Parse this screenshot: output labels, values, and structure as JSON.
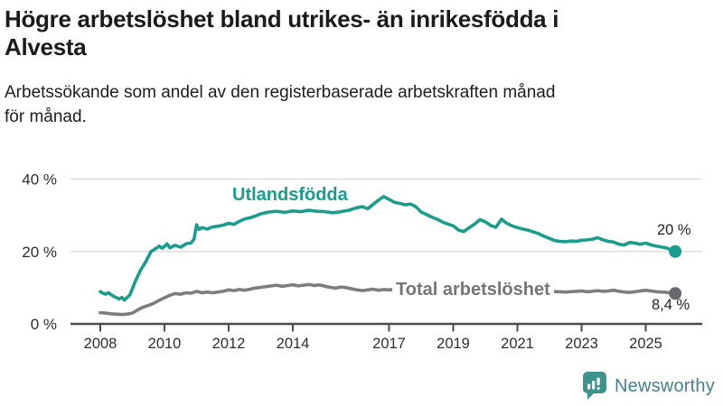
{
  "title_lines": [
    "Högre arbetslöshet bland utrikes- än inrikesfödda i",
    "Alvesta"
  ],
  "subtitle_lines": [
    "Arbetssökande som andel av den registerbaserade arbetskraften månad",
    "för månad."
  ],
  "logo": {
    "text": "Newsworthy",
    "icon": "bar-chart-speech-bubble",
    "icon_color": "#3e948b",
    "text_color": "#45808f"
  },
  "colors": {
    "grid": "#d8d8d8",
    "axis": "#4a4a4a",
    "tick_label": "#2e2e2e"
  },
  "chart_data": {
    "type": "line",
    "title": "Högre arbetslöshet bland utrikes- än inrikesfödda i Alvesta",
    "subtitle": "Arbetssökande som andel av den registerbaserade arbetskraften månad för månad.",
    "xlabel": "",
    "ylabel": "",
    "x_axis": {
      "ticks": [
        2008,
        2010,
        2012,
        2014,
        2017,
        2019,
        2021,
        2023,
        2025
      ],
      "range_years": [
        2008,
        2025.92
      ]
    },
    "y_axis": {
      "ticks": [
        {
          "value": 0,
          "label": "0 %"
        },
        {
          "value": 20,
          "label": "20 %"
        },
        {
          "value": 40,
          "label": "40 %"
        }
      ],
      "range": [
        0,
        44
      ],
      "grid": true
    },
    "legend_position": "inline-labels",
    "series": [
      {
        "name": "Utlandsfödda",
        "color": "#1a9c8e",
        "dot_color": "#1a9c8e",
        "end_label": "20 %",
        "end_value": 20.0,
        "points": [
          [
            2008.0,
            8.9
          ],
          [
            2008.08,
            8.5
          ],
          [
            2008.17,
            8.2
          ],
          [
            2008.25,
            8.6
          ],
          [
            2008.42,
            7.6
          ],
          [
            2008.58,
            6.9
          ],
          [
            2008.67,
            7.3
          ],
          [
            2008.75,
            6.6
          ],
          [
            2008.92,
            8.0
          ],
          [
            2009.08,
            11.5
          ],
          [
            2009.25,
            14.8
          ],
          [
            2009.42,
            17.2
          ],
          [
            2009.58,
            20.0
          ],
          [
            2009.75,
            20.9
          ],
          [
            2009.83,
            21.5
          ],
          [
            2009.92,
            20.9
          ],
          [
            2010.0,
            21.4
          ],
          [
            2010.08,
            22.1
          ],
          [
            2010.17,
            21.0
          ],
          [
            2010.33,
            21.7
          ],
          [
            2010.5,
            21.2
          ],
          [
            2010.67,
            22.1
          ],
          [
            2010.83,
            22.4
          ],
          [
            2010.92,
            23.4
          ],
          [
            2011.0,
            27.4
          ],
          [
            2011.08,
            26.1
          ],
          [
            2011.17,
            26.6
          ],
          [
            2011.33,
            26.2
          ],
          [
            2011.5,
            26.8
          ],
          [
            2011.67,
            27.0
          ],
          [
            2011.83,
            27.3
          ],
          [
            2012.0,
            27.8
          ],
          [
            2012.17,
            27.5
          ],
          [
            2012.33,
            28.3
          ],
          [
            2012.5,
            29.0
          ],
          [
            2012.67,
            29.3
          ],
          [
            2012.83,
            29.8
          ],
          [
            2013.0,
            30.4
          ],
          [
            2013.25,
            30.9
          ],
          [
            2013.5,
            31.1
          ],
          [
            2013.75,
            30.8
          ],
          [
            2014.0,
            31.2
          ],
          [
            2014.25,
            31.0
          ],
          [
            2014.5,
            31.4
          ],
          [
            2014.75,
            31.1
          ],
          [
            2015.0,
            31.0
          ],
          [
            2015.25,
            30.7
          ],
          [
            2015.5,
            31.0
          ],
          [
            2015.75,
            31.4
          ],
          [
            2016.0,
            32.1
          ],
          [
            2016.17,
            32.4
          ],
          [
            2016.33,
            31.8
          ],
          [
            2016.5,
            33.0
          ],
          [
            2016.67,
            34.2
          ],
          [
            2016.83,
            35.2
          ],
          [
            2017.0,
            34.4
          ],
          [
            2017.17,
            33.6
          ],
          [
            2017.33,
            33.3
          ],
          [
            2017.5,
            32.9
          ],
          [
            2017.67,
            33.1
          ],
          [
            2017.83,
            32.4
          ],
          [
            2018.0,
            30.9
          ],
          [
            2018.17,
            30.2
          ],
          [
            2018.33,
            29.5
          ],
          [
            2018.5,
            28.9
          ],
          [
            2018.67,
            28.1
          ],
          [
            2018.83,
            27.6
          ],
          [
            2019.0,
            27.1
          ],
          [
            2019.17,
            25.9
          ],
          [
            2019.33,
            25.5
          ],
          [
            2019.5,
            26.6
          ],
          [
            2019.67,
            27.6
          ],
          [
            2019.83,
            28.8
          ],
          [
            2020.0,
            28.2
          ],
          [
            2020.17,
            27.2
          ],
          [
            2020.33,
            26.7
          ],
          [
            2020.5,
            28.9
          ],
          [
            2020.67,
            27.8
          ],
          [
            2020.83,
            27.1
          ],
          [
            2021.0,
            26.6
          ],
          [
            2021.17,
            26.2
          ],
          [
            2021.33,
            25.9
          ],
          [
            2021.5,
            25.4
          ],
          [
            2021.67,
            24.9
          ],
          [
            2021.83,
            24.2
          ],
          [
            2022.0,
            23.6
          ],
          [
            2022.17,
            23.0
          ],
          [
            2022.33,
            22.8
          ],
          [
            2022.5,
            22.7
          ],
          [
            2022.67,
            22.9
          ],
          [
            2022.83,
            22.8
          ],
          [
            2023.0,
            23.1
          ],
          [
            2023.17,
            23.2
          ],
          [
            2023.33,
            23.4
          ],
          [
            2023.5,
            23.8
          ],
          [
            2023.67,
            23.2
          ],
          [
            2023.83,
            22.8
          ],
          [
            2024.0,
            22.6
          ],
          [
            2024.17,
            22.0
          ],
          [
            2024.33,
            21.8
          ],
          [
            2024.5,
            22.5
          ],
          [
            2024.67,
            22.3
          ],
          [
            2024.83,
            22.0
          ],
          [
            2025.0,
            22.3
          ],
          [
            2025.17,
            21.8
          ],
          [
            2025.33,
            21.5
          ],
          [
            2025.5,
            21.2
          ],
          [
            2025.67,
            20.9
          ],
          [
            2025.83,
            20.3
          ],
          [
            2025.92,
            20.0
          ]
        ]
      },
      {
        "name": "Total arbetslöshet",
        "color": "#7d7d80",
        "dot_color": "#68686c",
        "end_label": "8,4 %",
        "end_value": 8.4,
        "points": [
          [
            2008.0,
            3.1
          ],
          [
            2008.17,
            3.0
          ],
          [
            2008.33,
            2.8
          ],
          [
            2008.5,
            2.7
          ],
          [
            2008.67,
            2.6
          ],
          [
            2008.83,
            2.7
          ],
          [
            2009.0,
            3.0
          ],
          [
            2009.17,
            3.9
          ],
          [
            2009.33,
            4.6
          ],
          [
            2009.5,
            5.1
          ],
          [
            2009.67,
            5.7
          ],
          [
            2009.83,
            6.5
          ],
          [
            2010.0,
            7.2
          ],
          [
            2010.17,
            7.9
          ],
          [
            2010.33,
            8.4
          ],
          [
            2010.5,
            8.2
          ],
          [
            2010.67,
            8.6
          ],
          [
            2010.83,
            8.5
          ],
          [
            2011.0,
            9.0
          ],
          [
            2011.17,
            8.6
          ],
          [
            2011.33,
            8.8
          ],
          [
            2011.5,
            8.6
          ],
          [
            2011.67,
            8.8
          ],
          [
            2011.83,
            9.0
          ],
          [
            2012.0,
            9.4
          ],
          [
            2012.17,
            9.2
          ],
          [
            2012.33,
            9.5
          ],
          [
            2012.5,
            9.3
          ],
          [
            2012.67,
            9.6
          ],
          [
            2012.83,
            9.9
          ],
          [
            2013.0,
            10.1
          ],
          [
            2013.17,
            10.3
          ],
          [
            2013.33,
            10.5
          ],
          [
            2013.5,
            10.7
          ],
          [
            2013.67,
            10.4
          ],
          [
            2013.83,
            10.6
          ],
          [
            2014.0,
            10.8
          ],
          [
            2014.17,
            10.5
          ],
          [
            2014.33,
            10.7
          ],
          [
            2014.5,
            10.9
          ],
          [
            2014.67,
            10.6
          ],
          [
            2014.83,
            10.8
          ],
          [
            2015.0,
            10.4
          ],
          [
            2015.17,
            10.1
          ],
          [
            2015.33,
            9.9
          ],
          [
            2015.5,
            10.2
          ],
          [
            2015.67,
            10.0
          ],
          [
            2015.83,
            9.7
          ],
          [
            2016.0,
            9.4
          ],
          [
            2016.17,
            9.2
          ],
          [
            2016.33,
            9.4
          ],
          [
            2016.5,
            9.6
          ],
          [
            2016.67,
            9.3
          ],
          [
            2016.83,
            9.5
          ],
          [
            2017.0,
            9.4
          ],
          [
            2017.25,
            9.6
          ],
          [
            2017.5,
            9.3
          ],
          [
            2017.75,
            9.1
          ],
          [
            2018.0,
            8.9
          ],
          [
            2018.25,
            8.7
          ],
          [
            2018.5,
            8.6
          ],
          [
            2018.75,
            8.5
          ],
          [
            2019.0,
            8.4
          ],
          [
            2019.25,
            8.6
          ],
          [
            2019.5,
            8.8
          ],
          [
            2019.75,
            9.0
          ],
          [
            2020.0,
            9.4
          ],
          [
            2020.25,
            10.0
          ],
          [
            2020.5,
            10.3
          ],
          [
            2020.75,
            10.1
          ],
          [
            2021.0,
            9.9
          ],
          [
            2021.25,
            9.6
          ],
          [
            2021.5,
            9.3
          ],
          [
            2021.75,
            9.1
          ],
          [
            2022.0,
            9.0
          ],
          [
            2022.25,
            8.9
          ],
          [
            2022.5,
            8.8
          ],
          [
            2022.67,
            8.9
          ],
          [
            2022.83,
            9.0
          ],
          [
            2023.0,
            9.1
          ],
          [
            2023.17,
            8.9
          ],
          [
            2023.33,
            9.0
          ],
          [
            2023.5,
            9.2
          ],
          [
            2023.67,
            9.0
          ],
          [
            2023.83,
            9.1
          ],
          [
            2024.0,
            9.3
          ],
          [
            2024.17,
            9.0
          ],
          [
            2024.33,
            8.8
          ],
          [
            2024.5,
            8.7
          ],
          [
            2024.67,
            8.9
          ],
          [
            2024.83,
            9.1
          ],
          [
            2025.0,
            9.3
          ],
          [
            2025.17,
            9.1
          ],
          [
            2025.33,
            8.9
          ],
          [
            2025.5,
            8.8
          ],
          [
            2025.67,
            8.7
          ],
          [
            2025.83,
            8.5
          ],
          [
            2025.92,
            8.4
          ]
        ]
      }
    ]
  }
}
